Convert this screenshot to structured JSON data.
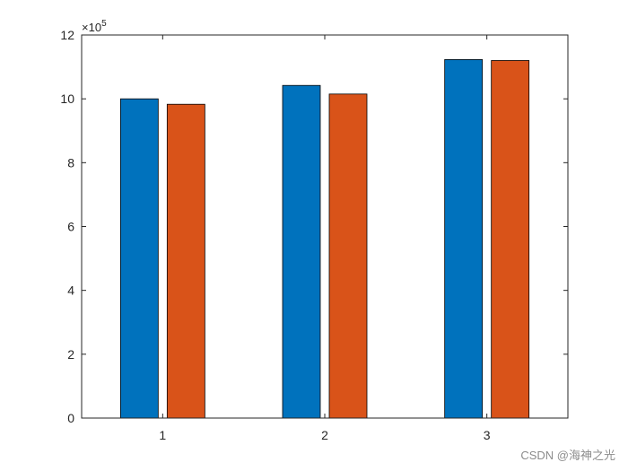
{
  "chart_data": {
    "type": "bar",
    "categories": [
      "1",
      "2",
      "3"
    ],
    "series": [
      {
        "color": "#0072BD",
        "values": [
          1000000,
          1042000,
          1123000
        ]
      },
      {
        "color": "#D95319",
        "values": [
          983000,
          1015000,
          1120000
        ]
      }
    ],
    "ylim": [
      0,
      1200000
    ],
    "yticks": [
      0,
      2,
      4,
      6,
      8,
      10,
      12
    ],
    "ytick_labels": [
      "0",
      "2",
      "4",
      "6",
      "8",
      "10",
      "12"
    ],
    "y_exponent": {
      "base": "×10",
      "power": "5"
    },
    "grid": false,
    "legend": "none"
  },
  "watermark": "CSDN @海神之光"
}
